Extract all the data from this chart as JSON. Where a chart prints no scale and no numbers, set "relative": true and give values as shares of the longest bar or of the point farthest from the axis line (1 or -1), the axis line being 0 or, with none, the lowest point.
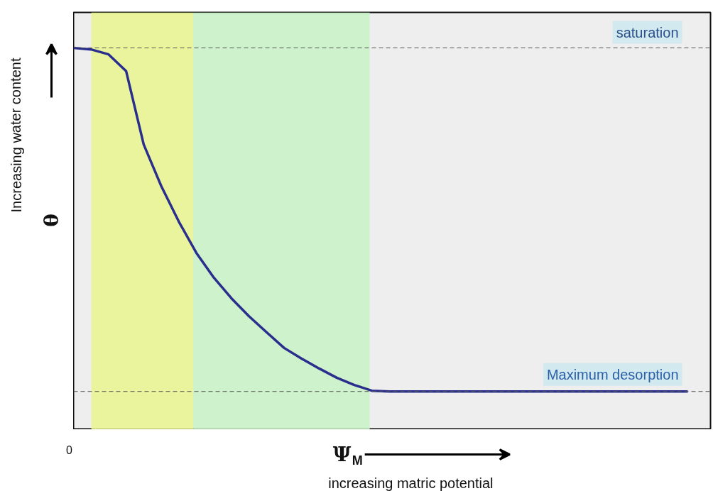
{
  "chart_data": {
    "type": "line",
    "relative": true,
    "xlabel": "increasing matric potential",
    "ylabel": "Increasing water content",
    "annotations": [
      "0",
      "θ",
      "Ψ$_{M}$"
    ],
    "categories": [
      null,
      null,
      null,
      null,
      null,
      null,
      null,
      null,
      null,
      null,
      null,
      null,
      null,
      null,
      null,
      null,
      null,
      null,
      null,
      null,
      null,
      null,
      null,
      null,
      null,
      null,
      null,
      null,
      null,
      null,
      null,
      null,
      null,
      null,
      null,
      null
    ],
    "ref_lines": [
      {
        "axis": "y",
        "value": 1.0,
        "label": "saturation",
        "color": "#555555",
        "line_style": "dashed"
      },
      {
        "axis": "y",
        "value": 0.1,
        "label": "Maximum desorption",
        "color": "#555555",
        "line_style": "dashed"
      }
    ],
    "series": [
      {
        "color": "#2a2e8c",
        "values": [
          1.0,
          0.996,
          0.983,
          0.939,
          0.747,
          0.638,
          0.545,
          0.463,
          0.398,
          0.344,
          0.297,
          0.255,
          0.214,
          0.186,
          0.16,
          0.136,
          0.117,
          0.102,
          0.1,
          0.1,
          0.1,
          0.1,
          0.1,
          0.1,
          0.1,
          0.1,
          0.1,
          0.1,
          0.1,
          0.1,
          0.1,
          0.1,
          0.1,
          0.1,
          0.1,
          0.1
        ]
      }
    ]
  }
}
